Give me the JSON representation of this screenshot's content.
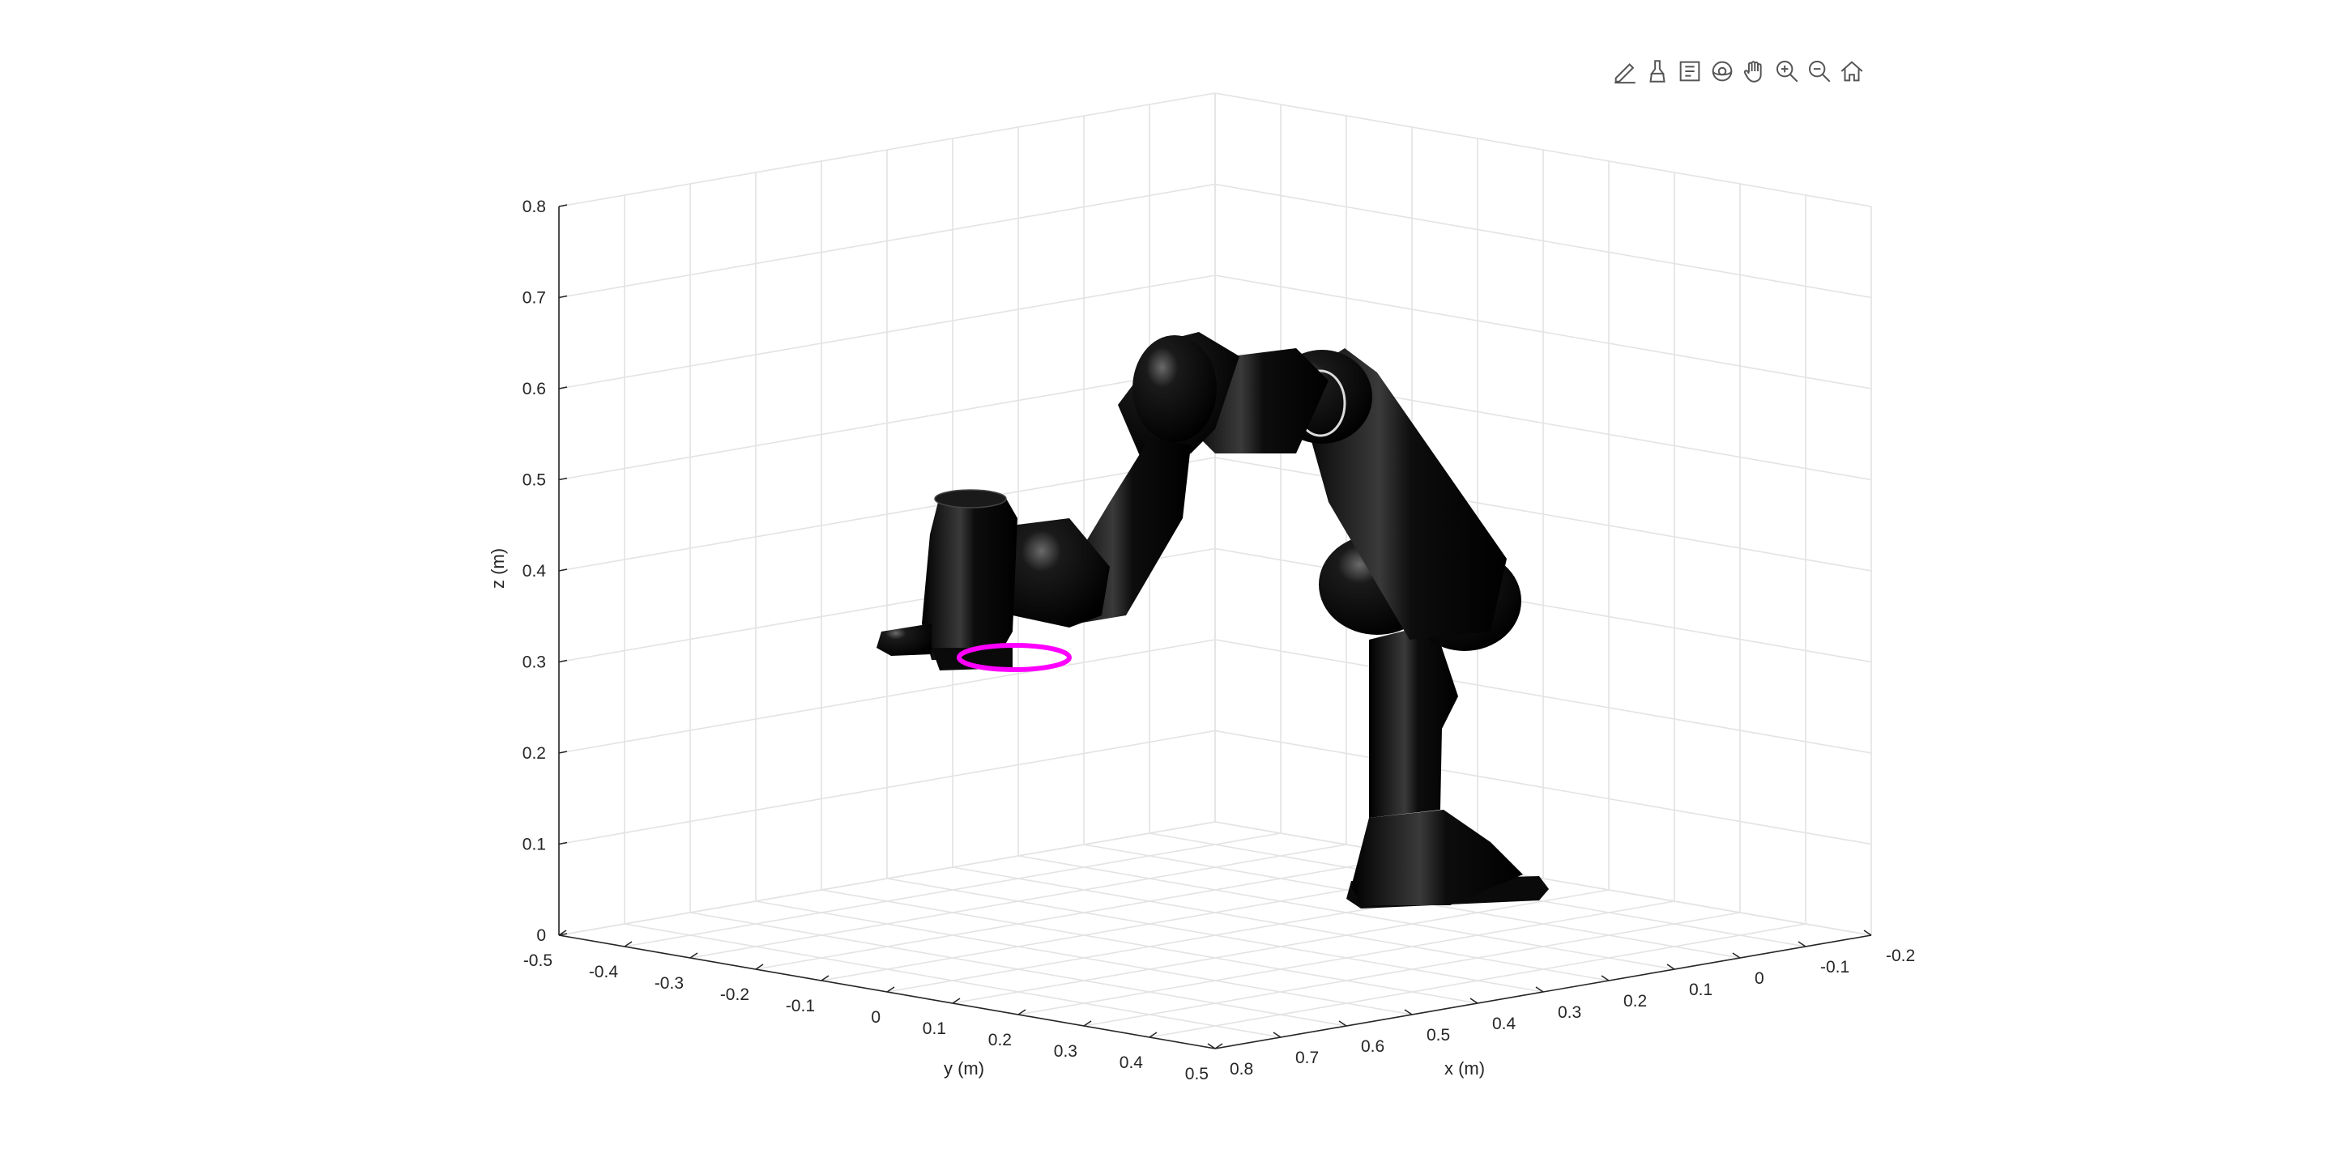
{
  "toolbar": {
    "buttons": [
      {
        "name": "edit-plot-icon"
      },
      {
        "name": "brush-icon"
      },
      {
        "name": "data-tips-icon"
      },
      {
        "name": "rotate-3d-icon"
      },
      {
        "name": "pan-icon"
      },
      {
        "name": "zoom-in-icon"
      },
      {
        "name": "zoom-out-icon"
      },
      {
        "name": "home-icon"
      }
    ]
  },
  "axes": {
    "zlabel": "z (m)",
    "ylabel": "y (m)",
    "xlabel": "x (m)",
    "z_ticks": [
      "0",
      "0.1",
      "0.2",
      "0.3",
      "0.4",
      "0.5",
      "0.6",
      "0.7",
      "0.8"
    ],
    "y_ticks": [
      "-0.5",
      "-0.4",
      "-0.3",
      "-0.2",
      "-0.1",
      "0",
      "0.1",
      "0.2",
      "0.3",
      "0.4",
      "0.5"
    ],
    "x_ticks": [
      "0.8",
      "0.7",
      "0.6",
      "0.5",
      "0.4",
      "0.3",
      "0.2",
      "0.1",
      "0",
      "-0.1",
      "-0.2"
    ],
    "zlim": [
      0,
      0.8
    ],
    "ylim": [
      -0.5,
      0.5
    ],
    "xlim": [
      -0.2,
      0.8
    ],
    "grid": true
  },
  "scene": {
    "robot_color": "#0a0a0a",
    "target_ring_color": "#ff00ff"
  }
}
